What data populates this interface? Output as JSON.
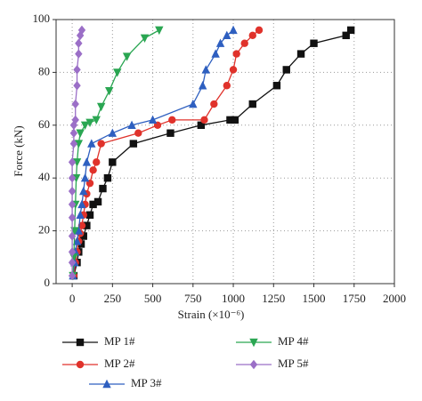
{
  "chart_data": {
    "type": "line",
    "xlabel": "Strain (×10⁻⁶)",
    "ylabel": "Force (kN)",
    "xlim": [
      -100,
      2000
    ],
    "ylim": [
      0,
      100
    ],
    "xticks": [
      0,
      250,
      500,
      750,
      1000,
      1250,
      1500,
      1750,
      2000
    ],
    "yticks": [
      0,
      20,
      40,
      60,
      80,
      100
    ],
    "grid": true,
    "legend": "bottom",
    "series": [
      {
        "name": "MP 1#",
        "color": "#111111",
        "marker": "square",
        "x": [
          10,
          30,
          40,
          55,
          70,
          90,
          110,
          130,
          160,
          190,
          220,
          250,
          380,
          610,
          800,
          980,
          1010,
          1120,
          1270,
          1330,
          1420,
          1500,
          1700,
          1730
        ],
        "values": [
          3,
          8,
          12,
          15,
          18,
          22,
          26,
          30,
          31,
          36,
          40,
          46,
          53,
          57,
          60,
          62,
          62,
          68,
          75,
          81,
          87,
          91,
          94,
          96
        ]
      },
      {
        "name": "MP 2#",
        "color": "#e0322b",
        "marker": "circle",
        "x": [
          10,
          20,
          30,
          40,
          50,
          60,
          70,
          80,
          90,
          110,
          130,
          150,
          180,
          410,
          530,
          620,
          820,
          880,
          960,
          1000,
          1020,
          1070,
          1120,
          1160
        ],
        "values": [
          3,
          8,
          12,
          16,
          19,
          22,
          26,
          30,
          34,
          38,
          43,
          46,
          53,
          57,
          60,
          62,
          62,
          68,
          75,
          81,
          87,
          91,
          94,
          96
        ]
      },
      {
        "name": "MP 3#",
        "color": "#2e5fc0",
        "marker": "triangle-up",
        "x": [
          5,
          15,
          20,
          30,
          40,
          50,
          60,
          70,
          80,
          90,
          120,
          250,
          370,
          500,
          750,
          810,
          830,
          890,
          920,
          960,
          1000
        ],
        "values": [
          3,
          8,
          12,
          16,
          20,
          26,
          30,
          35,
          40,
          46,
          53,
          57,
          60,
          62,
          68,
          75,
          81,
          87,
          91,
          94,
          96
        ]
      },
      {
        "name": "MP 4#",
        "color": "#2aa652",
        "marker": "triangle-down",
        "x": [
          5,
          10,
          15,
          20,
          25,
          30,
          40,
          50,
          80,
          110,
          150,
          180,
          230,
          280,
          340,
          450,
          540
        ],
        "values": [
          3,
          10,
          20,
          30,
          40,
          46,
          53,
          57,
          60,
          61,
          62,
          67,
          73,
          80,
          86,
          93,
          96
        ]
      },
      {
        "name": "MP 5#",
        "color": "#9b6fc7",
        "marker": "diamond",
        "x": [
          0,
          0,
          0,
          0,
          0,
          0,
          0,
          0,
          0,
          10,
          10,
          10,
          20,
          20,
          30,
          30,
          40,
          40,
          50,
          60
        ],
        "values": [
          3,
          8,
          12,
          18,
          25,
          30,
          35,
          40,
          46,
          53,
          57,
          60,
          62,
          68,
          75,
          81,
          87,
          91,
          94,
          96
        ]
      }
    ]
  }
}
